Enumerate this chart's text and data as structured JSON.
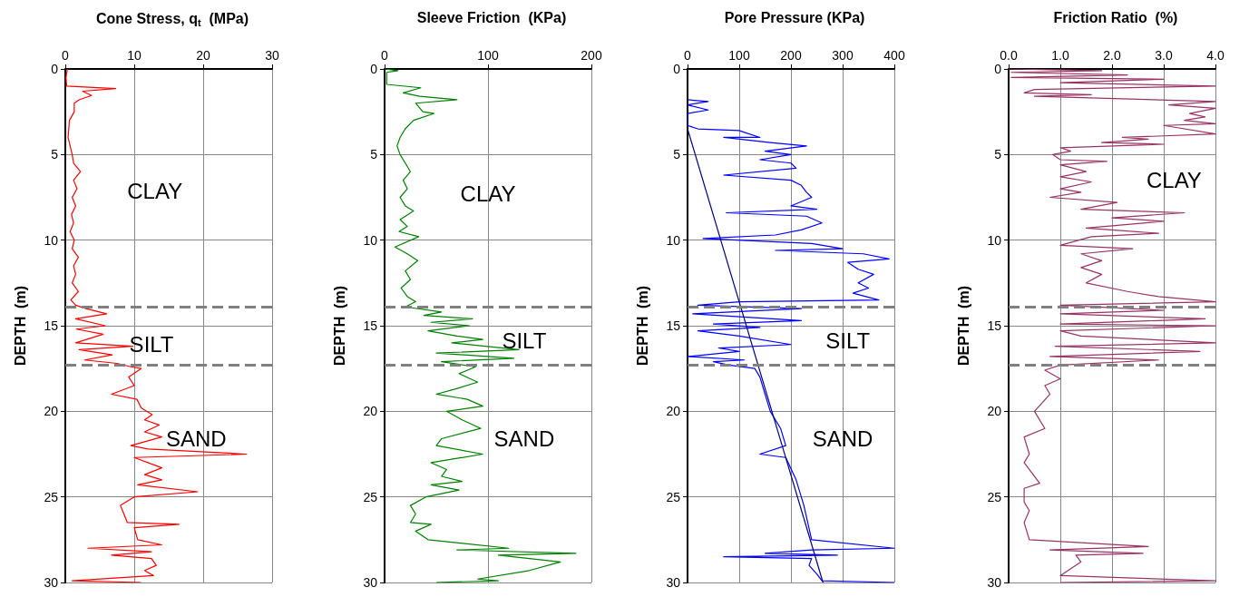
{
  "chart_data": [
    {
      "type": "line",
      "title": "Cone Stress, q$_{t}$  (MPa)",
      "ylabel": "DEPTH  (m)",
      "xlim": [
        0,
        30
      ],
      "xticks": [
        0,
        10,
        20,
        30
      ],
      "ylim": [
        30,
        0
      ],
      "yticks": [
        0,
        5,
        10,
        15,
        20,
        25,
        30
      ],
      "grid": true,
      "series": [
        {
          "color": "#ff0000",
          "x": [
            0.3,
            0.1,
            0.2,
            7.3,
            2.5,
            3.8,
            2.0,
            1.3,
            1.3,
            0.6,
            0.4,
            1.0,
            1.2,
            2.2,
            1.2,
            1.7,
            1.0,
            1.5,
            0.9,
            1.2,
            0.7,
            1.3,
            1.0,
            1.9,
            1.2,
            1.5,
            1.0,
            1.9,
            0.8,
            1.5,
            3.0,
            6.0,
            1.5,
            5.8,
            1.6,
            5.5,
            1.5,
            9.8,
            2.0,
            6.8,
            2.8,
            7.5,
            9.5,
            11.0,
            9.2,
            10.0,
            6.7,
            10.4,
            11.0,
            12.6,
            11.5,
            13.6,
            11.5,
            14.0,
            9.5,
            12.0,
            26.3,
            10.0,
            14.0,
            11.5,
            14.0,
            10.5,
            19.2,
            10.0,
            8.0,
            8.5,
            9.0,
            16.5,
            10.0,
            10.5,
            14.0,
            3.3,
            12.5,
            6.7,
            12.5,
            13.2,
            11.5,
            12.8,
            1.0,
            11.0
          ],
          "values": [
            0,
            0.5,
            1.0,
            1.15,
            1.3,
            1.55,
            1.8,
            2.0,
            2.5,
            3.0,
            4.0,
            5.0,
            5.5,
            6.0,
            6.5,
            7.0,
            7.5,
            8.0,
            8.5,
            9.0,
            9.5,
            10.0,
            10.5,
            11.0,
            11.5,
            12.0,
            12.5,
            13.0,
            13.5,
            13.8,
            14.0,
            14.3,
            14.6,
            15.0,
            15.2,
            15.5,
            16.0,
            16.2,
            16.4,
            16.7,
            17.0,
            17.2,
            17.4,
            17.5,
            18.0,
            18.5,
            19.0,
            19.3,
            19.8,
            20.2,
            20.5,
            20.8,
            21.2,
            21.5,
            22.0,
            22.2,
            22.5,
            22.7,
            23.3,
            23.7,
            24.0,
            24.3,
            24.7,
            25.0,
            25.5,
            26.0,
            26.5,
            26.6,
            26.8,
            27.5,
            27.8,
            28.0,
            28.2,
            28.4,
            28.6,
            29.0,
            29.3,
            29.6,
            29.9,
            30.0
          ]
        }
      ],
      "ref_lines": [
        {
          "axis": "y",
          "value": 13.9,
          "color": "#808080",
          "line_style": "dashed"
        },
        {
          "axis": "y",
          "value": 17.3,
          "color": "#808080",
          "line_style": "dashed"
        }
      ],
      "annotations": [
        "CLAY",
        "SILT",
        "SAND"
      ]
    },
    {
      "type": "line",
      "title": "Sleeve Friction  (KPa)",
      "ylabel": "DEPTH  (m)",
      "xlim": [
        0,
        200
      ],
      "xticks": [
        0,
        100,
        200
      ],
      "ylim": [
        30,
        0
      ],
      "yticks": [
        0,
        5,
        10,
        15,
        20,
        25,
        30
      ],
      "grid": true,
      "series": [
        {
          "color": "#008000",
          "x": [
            0,
            13,
            2,
            2,
            35,
            18,
            34,
            70,
            30,
            37,
            48,
            28,
            20,
            15,
            12,
            15,
            20,
            25,
            18,
            22,
            15,
            20,
            28,
            15,
            22,
            14,
            33,
            10,
            22,
            32,
            20,
            25,
            16,
            22,
            30,
            20,
            55,
            38,
            85,
            45,
            82,
            42,
            70,
            95,
            65,
            130,
            50,
            125,
            55,
            88,
            72,
            90,
            68,
            50,
            80,
            95,
            60,
            75,
            93,
            55,
            50,
            95,
            45,
            60,
            55,
            75,
            45,
            72,
            40,
            25,
            30,
            25,
            45,
            30,
            42,
            120,
            70,
            185,
            110,
            170,
            140,
            90,
            110,
            50
          ],
          "values": [
            0,
            0.1,
            0.2,
            0.9,
            1.1,
            1.4,
            1.6,
            1.8,
            2.0,
            2.5,
            2.6,
            3.0,
            3.5,
            4.0,
            4.5,
            5.0,
            5.5,
            6.0,
            6.5,
            7.0,
            7.5,
            8.0,
            8.3,
            8.8,
            9.2,
            9.5,
            9.8,
            10.4,
            10.8,
            11.2,
            11.8,
            12.3,
            12.8,
            13.3,
            13.6,
            13.9,
            14.2,
            14.4,
            14.6,
            14.8,
            15.0,
            15.3,
            15.6,
            15.8,
            16.0,
            16.4,
            16.6,
            16.9,
            17.1,
            17.4,
            17.8,
            18.3,
            18.7,
            19.0,
            19.3,
            19.7,
            20.0,
            20.5,
            21.0,
            21.6,
            22.0,
            22.5,
            23.0,
            23.4,
            23.8,
            24.1,
            24.3,
            24.6,
            25.0,
            25.5,
            26.0,
            26.5,
            26.6,
            27.0,
            27.5,
            28.0,
            28.1,
            28.3,
            28.4,
            28.8,
            29.3,
            29.8,
            29.9,
            30.0
          ]
        }
      ],
      "ref_lines": [
        {
          "axis": "y",
          "value": 13.9,
          "color": "#808080",
          "line_style": "dashed"
        },
        {
          "axis": "y",
          "value": 17.3,
          "color": "#808080",
          "line_style": "dashed"
        }
      ],
      "annotations": [
        "CLAY",
        "SILT",
        "SAND"
      ]
    },
    {
      "type": "line",
      "title": "Pore Pressure (KPa)",
      "ylabel": "DEPTH  (m)",
      "xlim": [
        0,
        400
      ],
      "xticks": [
        0,
        100,
        200,
        300,
        400
      ],
      "ylim": [
        30,
        0
      ],
      "yticks": [
        0,
        5,
        10,
        15,
        20,
        25,
        30
      ],
      "grid": true,
      "series": [
        {
          "color": "#0000ff",
          "x": [
            0,
            40,
            0,
            40,
            0,
            0,
            20,
            100,
            110,
            140,
            70,
            160,
            230,
            150,
            200,
            140,
            200,
            210,
            70,
            200,
            220,
            230,
            240,
            200,
            250,
            75,
            230,
            260,
            220,
            170,
            30,
            240,
            300,
            170,
            340,
            390,
            310,
            330,
            360,
            330,
            350,
            320,
            370,
            100,
            20,
            220,
            10,
            220,
            50,
            140,
            20,
            100,
            200,
            60,
            100,
            0,
            110,
            50,
            80,
            130,
            140,
            150,
            160,
            180,
            190,
            140,
            190,
            210,
            225,
            240,
            400,
            240,
            150,
            290,
            70,
            240,
            235,
            250,
            260,
            400
          ],
          "values": [
            1.8,
            1.9,
            2.1,
            2.4,
            2.6,
            3.3,
            3.5,
            3.6,
            3.7,
            4.0,
            4.0,
            4.3,
            4.5,
            4.8,
            5.0,
            5.3,
            5.5,
            5.8,
            6.2,
            6.5,
            6.8,
            7.2,
            7.5,
            8.0,
            8.2,
            8.4,
            8.6,
            9.0,
            9.4,
            9.7,
            9.9,
            10.2,
            10.5,
            10.6,
            10.8,
            11.1,
            11.3,
            11.7,
            12.0,
            12.5,
            12.8,
            13.1,
            13.5,
            13.6,
            13.8,
            14.0,
            14.3,
            14.7,
            14.9,
            15.1,
            15.3,
            15.6,
            16.1,
            16.3,
            16.5,
            16.8,
            17.0,
            17.1,
            17.3,
            17.5,
            18.0,
            19.0,
            20.0,
            21.0,
            22.0,
            22.5,
            22.7,
            24.0,
            25.5,
            27.5,
            28.0,
            28.1,
            28.3,
            28.4,
            28.5,
            28.6,
            29.0,
            29.5,
            29.9,
            30.0
          ]
        },
        {
          "color": "#000080",
          "x": [
            0,
            262
          ],
          "values": [
            3.5,
            30
          ]
        }
      ],
      "ref_lines": [
        {
          "axis": "y",
          "value": 13.9,
          "color": "#808080",
          "line_style": "dashed"
        },
        {
          "axis": "y",
          "value": 17.3,
          "color": "#808080",
          "line_style": "dashed"
        }
      ],
      "annotations": [
        "SILT",
        "SAND"
      ]
    },
    {
      "type": "line",
      "title": "Friction Ratio  (%)",
      "ylabel": "DEPTH  (m)",
      "xlim": [
        0,
        4
      ],
      "xticks": [
        {
          "value": 0,
          "label": "0.0"
        },
        {
          "value": 1,
          "label": "1.0"
        },
        {
          "value": 2,
          "label": "2.0"
        },
        {
          "value": 3,
          "label": "3.0"
        },
        {
          "value": 4,
          "label": "4.0"
        }
      ],
      "ylim": [
        30,
        0
      ],
      "yticks": [
        0,
        5,
        10,
        15,
        20,
        25,
        30
      ],
      "grid": true,
      "series": [
        {
          "color": "#993366",
          "x": [
            0,
            1.8,
            0.05,
            2.3,
            0.05,
            3.0,
            1.0,
            4.0,
            0.5,
            0.3,
            1.6,
            0.5,
            4.0,
            3.1,
            4.0,
            3.5,
            3.8,
            3.4,
            4.0,
            3.0,
            4.0,
            2.2,
            2.7,
            1.8,
            3.0,
            1.0,
            1.2,
            0.85,
            1.0,
            1.9,
            1.0,
            1.5,
            1.0,
            1.6,
            1.0,
            1.4,
            0.8,
            2.1,
            1.4,
            3.4,
            2.0,
            3.0,
            1.5,
            2.9,
            1.6,
            1.0,
            2.4,
            1.4,
            1.8,
            1.4,
            1.8,
            1.5,
            2.3,
            2.9,
            4.0,
            1.0,
            3.0,
            1.0,
            3.8,
            1.0,
            4.0,
            1.0,
            1.4,
            4.0,
            0.9,
            3.7,
            0.8,
            2.9,
            1.0,
            0.7,
            1.0,
            0.7,
            0.8,
            0.5,
            0.7,
            0.3,
            0.4,
            0.3,
            0.6,
            0.3,
            0.3,
            0.4,
            0.3,
            0.4,
            2.7,
            0.8,
            2.6,
            1.3,
            1.4,
            1.0,
            4.0,
            1.0
          ],
          "values": [
            0,
            0.1,
            0.2,
            0.35,
            0.5,
            0.6,
            0.8,
            1.0,
            1.2,
            1.4,
            1.5,
            1.6,
            1.9,
            2.1,
            2.3,
            2.6,
            2.8,
            3.0,
            3.2,
            3.3,
            3.8,
            4.0,
            4.1,
            4.3,
            4.4,
            4.6,
            4.8,
            5.0,
            5.3,
            5.4,
            5.6,
            6.0,
            6.3,
            6.6,
            7.0,
            7.2,
            7.5,
            7.8,
            8.2,
            8.4,
            8.7,
            8.9,
            9.3,
            9.6,
            9.8,
            10.3,
            10.5,
            10.8,
            11.2,
            11.6,
            12.0,
            12.5,
            13.0,
            13.3,
            13.6,
            13.8,
            14.1,
            14.3,
            14.6,
            14.9,
            15.0,
            15.3,
            15.6,
            16.0,
            16.2,
            16.5,
            16.8,
            17.0,
            17.3,
            17.6,
            18.1,
            18.5,
            19.0,
            20.0,
            21.0,
            21.5,
            22.5,
            23.0,
            24.2,
            24.5,
            25.3,
            25.8,
            26.5,
            27.5,
            27.9,
            28.1,
            28.3,
            28.4,
            28.8,
            29.6,
            29.9,
            30.0
          ]
        }
      ],
      "ref_lines": [
        {
          "axis": "y",
          "value": 13.9,
          "color": "#808080",
          "line_style": "dashed"
        },
        {
          "axis": "y",
          "value": 17.3,
          "color": "#808080",
          "line_style": "dashed"
        }
      ],
      "annotations": [
        "CLAY"
      ]
    }
  ]
}
